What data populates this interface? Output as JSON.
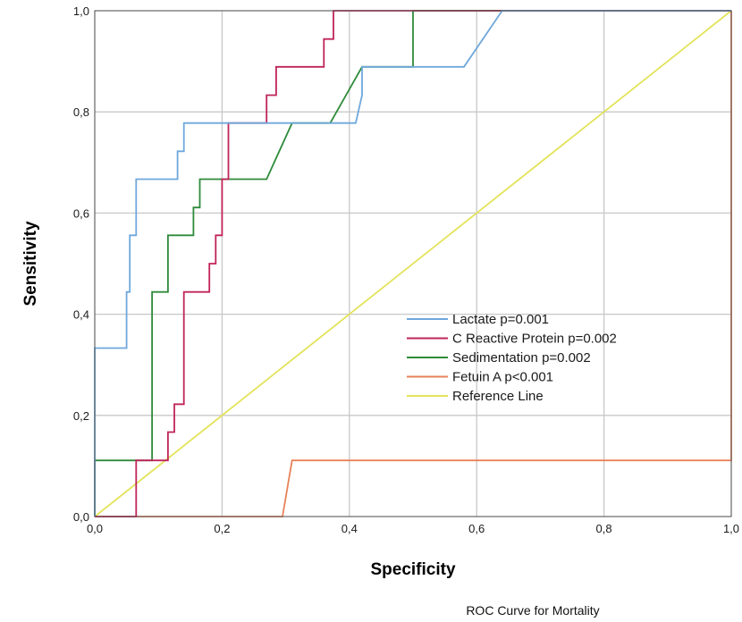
{
  "chart_data": {
    "type": "line",
    "xlabel": "Specificity",
    "ylabel": "Sensitivity",
    "xlim": [
      0,
      1
    ],
    "ylim": [
      0,
      1
    ],
    "x_ticks": [
      "0,0",
      "0,2",
      "0,4",
      "0,6",
      "0,8",
      "1,0"
    ],
    "y_ticks": [
      "0,0",
      "0,2",
      "0,4",
      "0,6",
      "0,8",
      "1,0"
    ],
    "grid": true,
    "legend_position": "lower-right",
    "caption": "ROC Curve for Mortality",
    "series": [
      {
        "name": "Lactate p=0.001",
        "color": "#6fa8dc",
        "x": [
          0,
          0,
          0.03,
          0.03,
          0.05,
          0.05,
          0.055,
          0.055,
          0.065,
          0.065,
          0.13,
          0.13,
          0.14,
          0.14,
          0.41,
          0.42,
          0.42,
          0.58,
          0.64,
          1.0
        ],
        "y": [
          0,
          0.333,
          0.333,
          0.333,
          0.333,
          0.444,
          0.444,
          0.556,
          0.556,
          0.667,
          0.667,
          0.722,
          0.722,
          0.778,
          0.778,
          0.833,
          0.889,
          0.889,
          1.0,
          1.0
        ]
      },
      {
        "name": "C Reactive Protein p=0.002",
        "color": "#c0245a",
        "x": [
          0,
          0.065,
          0.065,
          0.115,
          0.115,
          0.125,
          0.125,
          0.14,
          0.14,
          0.18,
          0.18,
          0.19,
          0.19,
          0.2,
          0.2,
          0.21,
          0.21,
          0.27,
          0.27,
          0.285,
          0.285,
          0.36,
          0.36,
          0.375,
          0.375,
          1.0
        ],
        "y": [
          0,
          0,
          0.111,
          0.111,
          0.167,
          0.167,
          0.222,
          0.222,
          0.444,
          0.444,
          0.5,
          0.5,
          0.556,
          0.556,
          0.667,
          0.667,
          0.778,
          0.778,
          0.833,
          0.833,
          0.889,
          0.889,
          0.944,
          0.944,
          1.0,
          1.0
        ]
      },
      {
        "name": "Sedimentation p=0.002",
        "color": "#2e8b3a",
        "x": [
          0,
          0,
          0.09,
          0.09,
          0.115,
          0.115,
          0.155,
          0.155,
          0.165,
          0.165,
          0.27,
          0.31,
          0.37,
          0.42,
          0.5,
          0.5,
          1.0
        ],
        "y": [
          0,
          0.111,
          0.111,
          0.444,
          0.444,
          0.556,
          0.556,
          0.611,
          0.611,
          0.667,
          0.667,
          0.778,
          0.778,
          0.889,
          0.889,
          1.0,
          1.0
        ]
      },
      {
        "name": "Fetuin A p<0.001",
        "color": "#e8825a",
        "x": [
          0,
          0.295,
          0.31,
          0.31,
          1.0,
          1.0
        ],
        "y": [
          0,
          0,
          0.111,
          0.111,
          0.111,
          1.0
        ]
      },
      {
        "name": "Reference Line",
        "color": "#e3e35a",
        "x": [
          0,
          1
        ],
        "y": [
          0,
          1
        ]
      }
    ]
  }
}
